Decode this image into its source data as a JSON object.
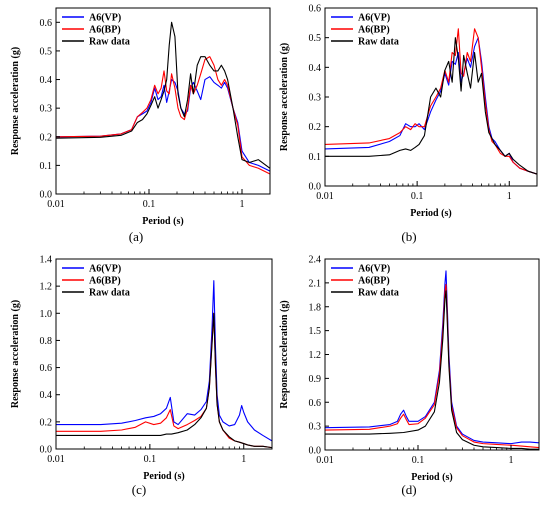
{
  "chart_data": [
    {
      "type": "line",
      "caption": "(a)",
      "xlabel": "Period (s)",
      "ylabel": "Response acceleration (g)",
      "xscale": "log",
      "xlim": [
        0.01,
        2
      ],
      "ylim": [
        0,
        0.65
      ],
      "xticks": [
        0.01,
        0.1,
        1
      ],
      "xtick_labels": [
        "0.01",
        "0.1",
        "1"
      ],
      "yticks": [
        0,
        0.1,
        0.2,
        0.3,
        0.4,
        0.5,
        0.6
      ],
      "ytick_labels": [
        "0.0",
        "0.1",
        "0.2",
        "0.3",
        "0.4",
        "0.5",
        "0.6"
      ],
      "legend_position": "top-left",
      "series": [
        {
          "name": "A6(VP)",
          "color": "#0000ff",
          "x": [
            0.01,
            0.03,
            0.05,
            0.065,
            0.075,
            0.085,
            0.095,
            0.105,
            0.115,
            0.125,
            0.135,
            0.145,
            0.155,
            0.165,
            0.175,
            0.19,
            0.205,
            0.22,
            0.24,
            0.26,
            0.28,
            0.3,
            0.33,
            0.36,
            0.4,
            0.45,
            0.5,
            0.55,
            0.6,
            0.65,
            0.7,
            0.8,
            0.9,
            1,
            1.2,
            1.5,
            2
          ],
          "y": [
            0.2,
            0.202,
            0.21,
            0.225,
            0.27,
            0.28,
            0.29,
            0.32,
            0.37,
            0.33,
            0.34,
            0.38,
            0.32,
            0.36,
            0.4,
            0.39,
            0.36,
            0.3,
            0.28,
            0.29,
            0.37,
            0.39,
            0.36,
            0.33,
            0.4,
            0.41,
            0.39,
            0.38,
            0.37,
            0.39,
            0.37,
            0.3,
            0.25,
            0.15,
            0.11,
            0.1,
            0.08
          ]
        },
        {
          "name": "A6(BP)",
          "color": "#ff0000",
          "x": [
            0.01,
            0.03,
            0.05,
            0.065,
            0.075,
            0.085,
            0.095,
            0.105,
            0.115,
            0.125,
            0.135,
            0.145,
            0.155,
            0.165,
            0.175,
            0.19,
            0.205,
            0.22,
            0.24,
            0.26,
            0.28,
            0.3,
            0.33,
            0.36,
            0.4,
            0.45,
            0.5,
            0.55,
            0.6,
            0.65,
            0.7,
            0.8,
            0.9,
            1,
            1.2,
            1.5,
            2
          ],
          "y": [
            0.2,
            0.202,
            0.21,
            0.225,
            0.27,
            0.285,
            0.3,
            0.33,
            0.38,
            0.35,
            0.37,
            0.43,
            0.36,
            0.35,
            0.42,
            0.37,
            0.3,
            0.27,
            0.26,
            0.3,
            0.38,
            0.35,
            0.38,
            0.42,
            0.47,
            0.48,
            0.45,
            0.4,
            0.38,
            0.4,
            0.38,
            0.3,
            0.24,
            0.13,
            0.1,
            0.09,
            0.07
          ]
        },
        {
          "name": "Raw data",
          "color": "#000000",
          "x": [
            0.01,
            0.03,
            0.05,
            0.065,
            0.075,
            0.085,
            0.095,
            0.105,
            0.115,
            0.125,
            0.135,
            0.145,
            0.155,
            0.165,
            0.175,
            0.19,
            0.205,
            0.22,
            0.24,
            0.26,
            0.28,
            0.3,
            0.33,
            0.36,
            0.4,
            0.45,
            0.5,
            0.55,
            0.6,
            0.65,
            0.7,
            0.8,
            0.9,
            1,
            1.2,
            1.5,
            2
          ],
          "y": [
            0.195,
            0.198,
            0.205,
            0.22,
            0.25,
            0.26,
            0.28,
            0.31,
            0.34,
            0.3,
            0.33,
            0.36,
            0.4,
            0.52,
            0.6,
            0.55,
            0.35,
            0.3,
            0.27,
            0.33,
            0.42,
            0.35,
            0.45,
            0.48,
            0.48,
            0.45,
            0.43,
            0.43,
            0.45,
            0.43,
            0.4,
            0.3,
            0.2,
            0.12,
            0.11,
            0.12,
            0.09
          ]
        }
      ]
    },
    {
      "type": "line",
      "caption": "(b)",
      "xlabel": "Period (s)",
      "ylabel": "Response acceleration (g)",
      "xscale": "log",
      "xlim": [
        0.01,
        2
      ],
      "ylim": [
        0,
        0.6
      ],
      "xticks": [
        0.01,
        0.1,
        1
      ],
      "xtick_labels": [
        "0.01",
        "0.1",
        "1"
      ],
      "yticks": [
        0,
        0.1,
        0.2,
        0.3,
        0.4,
        0.5,
        0.6
      ],
      "ytick_labels": [
        "0.0",
        "0.1",
        "0.2",
        "0.3",
        "0.4",
        "0.5",
        "0.6"
      ],
      "legend_position": "top-left",
      "series": [
        {
          "name": "A6(VP)",
          "color": "#0000ff",
          "x": [
            0.01,
            0.03,
            0.05,
            0.065,
            0.075,
            0.085,
            0.095,
            0.105,
            0.12,
            0.14,
            0.16,
            0.18,
            0.2,
            0.22,
            0.24,
            0.26,
            0.28,
            0.3,
            0.32,
            0.35,
            0.38,
            0.42,
            0.46,
            0.5,
            0.55,
            0.6,
            0.65,
            0.7,
            0.8,
            0.9,
            1,
            1.1,
            1.3,
            1.6,
            2
          ],
          "y": [
            0.125,
            0.13,
            0.15,
            0.17,
            0.21,
            0.2,
            0.2,
            0.21,
            0.19,
            0.25,
            0.29,
            0.32,
            0.38,
            0.34,
            0.42,
            0.41,
            0.45,
            0.35,
            0.38,
            0.43,
            0.4,
            0.47,
            0.5,
            0.42,
            0.3,
            0.2,
            0.16,
            0.15,
            0.12,
            0.1,
            0.11,
            0.08,
            0.06,
            0.05,
            0.04
          ]
        },
        {
          "name": "A6(BP)",
          "color": "#ff0000",
          "x": [
            0.01,
            0.03,
            0.05,
            0.065,
            0.075,
            0.085,
            0.095,
            0.105,
            0.12,
            0.14,
            0.16,
            0.18,
            0.2,
            0.22,
            0.24,
            0.26,
            0.28,
            0.3,
            0.32,
            0.35,
            0.38,
            0.42,
            0.46,
            0.5,
            0.55,
            0.6,
            0.65,
            0.7,
            0.8,
            0.9,
            1,
            1.1,
            1.3,
            1.6,
            2
          ],
          "y": [
            0.14,
            0.145,
            0.16,
            0.18,
            0.2,
            0.19,
            0.21,
            0.2,
            0.2,
            0.27,
            0.3,
            0.33,
            0.39,
            0.35,
            0.45,
            0.44,
            0.53,
            0.38,
            0.37,
            0.45,
            0.42,
            0.53,
            0.5,
            0.4,
            0.28,
            0.19,
            0.15,
            0.14,
            0.11,
            0.1,
            0.1,
            0.08,
            0.06,
            0.05,
            0.04
          ]
        },
        {
          "name": "Raw data",
          "color": "#000000",
          "x": [
            0.01,
            0.03,
            0.05,
            0.065,
            0.075,
            0.085,
            0.095,
            0.105,
            0.12,
            0.14,
            0.16,
            0.18,
            0.2,
            0.22,
            0.24,
            0.26,
            0.28,
            0.3,
            0.32,
            0.35,
            0.38,
            0.42,
            0.46,
            0.5,
            0.55,
            0.6,
            0.65,
            0.7,
            0.8,
            0.9,
            1,
            1.1,
            1.3,
            1.6,
            2
          ],
          "y": [
            0.1,
            0.1,
            0.105,
            0.12,
            0.125,
            0.12,
            0.13,
            0.14,
            0.17,
            0.3,
            0.33,
            0.3,
            0.39,
            0.42,
            0.35,
            0.5,
            0.43,
            0.32,
            0.44,
            0.38,
            0.33,
            0.45,
            0.35,
            0.38,
            0.25,
            0.18,
            0.16,
            0.14,
            0.12,
            0.1,
            0.11,
            0.09,
            0.07,
            0.05,
            0.04
          ]
        }
      ]
    },
    {
      "type": "line",
      "caption": "(c)",
      "xlabel": "Period (s)",
      "ylabel": "Response acceleration (g)",
      "xscale": "log",
      "xlim": [
        0.01,
        2
      ],
      "ylim": [
        0,
        1.4
      ],
      "xticks": [
        0.01,
        0.1,
        1
      ],
      "xtick_labels": [
        "0.01",
        "0.1",
        "1"
      ],
      "yticks": [
        0,
        0.2,
        0.4,
        0.6,
        0.8,
        1.0,
        1.2,
        1.4
      ],
      "ytick_labels": [
        "0.0",
        "0.2",
        "0.4",
        "0.6",
        "0.8",
        "1.0",
        "1.2",
        "1.4"
      ],
      "legend_position": "top-left",
      "series": [
        {
          "name": "A6(VP)",
          "color": "#0000ff",
          "x": [
            0.01,
            0.03,
            0.05,
            0.07,
            0.09,
            0.11,
            0.13,
            0.15,
            0.165,
            0.18,
            0.2,
            0.25,
            0.3,
            0.35,
            0.4,
            0.43,
            0.46,
            0.48,
            0.5,
            0.52,
            0.55,
            0.6,
            0.7,
            0.8,
            0.9,
            0.95,
            1,
            1.1,
            1.3,
            1.6,
            2
          ],
          "y": [
            0.18,
            0.18,
            0.19,
            0.21,
            0.23,
            0.24,
            0.26,
            0.3,
            0.38,
            0.2,
            0.18,
            0.26,
            0.25,
            0.29,
            0.35,
            0.5,
            0.9,
            1.24,
            0.75,
            0.4,
            0.25,
            0.2,
            0.17,
            0.18,
            0.25,
            0.32,
            0.27,
            0.2,
            0.14,
            0.1,
            0.06
          ]
        },
        {
          "name": "A6(BP)",
          "color": "#ff0000",
          "x": [
            0.01,
            0.03,
            0.05,
            0.07,
            0.09,
            0.11,
            0.13,
            0.15,
            0.165,
            0.18,
            0.2,
            0.25,
            0.3,
            0.35,
            0.4,
            0.43,
            0.46,
            0.48,
            0.5,
            0.52,
            0.55,
            0.6,
            0.7,
            0.8,
            0.9,
            1,
            1.1,
            1.3,
            1.6,
            2
          ],
          "y": [
            0.13,
            0.13,
            0.14,
            0.16,
            0.2,
            0.18,
            0.19,
            0.23,
            0.29,
            0.17,
            0.15,
            0.18,
            0.21,
            0.24,
            0.3,
            0.45,
            0.8,
            1.0,
            0.6,
            0.33,
            0.2,
            0.14,
            0.08,
            0.06,
            0.05,
            0.04,
            0.03,
            0.02,
            0.02,
            0.01
          ]
        },
        {
          "name": "Raw data",
          "color": "#000000",
          "x": [
            0.01,
            0.03,
            0.05,
            0.07,
            0.09,
            0.11,
            0.13,
            0.15,
            0.17,
            0.2,
            0.25,
            0.3,
            0.35,
            0.4,
            0.43,
            0.46,
            0.48,
            0.5,
            0.52,
            0.55,
            0.6,
            0.7,
            0.8,
            0.9,
            1,
            1.1,
            1.3,
            1.6,
            2
          ],
          "y": [
            0.1,
            0.1,
            0.1,
            0.1,
            0.1,
            0.1,
            0.1,
            0.11,
            0.11,
            0.12,
            0.14,
            0.18,
            0.23,
            0.3,
            0.45,
            0.78,
            1.0,
            0.62,
            0.33,
            0.2,
            0.14,
            0.09,
            0.06,
            0.05,
            0.04,
            0.03,
            0.02,
            0.02,
            0.01
          ]
        }
      ]
    },
    {
      "type": "line",
      "caption": "(d)",
      "xlabel": "Period (s)",
      "ylabel": "Response acceleration (g)",
      "xscale": "log",
      "xlim": [
        0.01,
        2
      ],
      "ylim": [
        0,
        2.4
      ],
      "xticks": [
        0.01,
        0.1,
        1
      ],
      "xtick_labels": [
        "0.01",
        "0.1",
        "1"
      ],
      "yticks": [
        0,
        0.3,
        0.6,
        0.9,
        1.2,
        1.5,
        1.8,
        2.1,
        2.4
      ],
      "ytick_labels": [
        "0.0",
        "0.3",
        "0.6",
        "0.9",
        "1.2",
        "1.5",
        "1.8",
        "2.1",
        "2.4"
      ],
      "legend_position": "top-left",
      "series": [
        {
          "name": "A6(VP)",
          "color": "#0000ff",
          "x": [
            0.01,
            0.03,
            0.05,
            0.06,
            0.065,
            0.07,
            0.075,
            0.08,
            0.1,
            0.12,
            0.15,
            0.17,
            0.185,
            0.195,
            0.2,
            0.205,
            0.215,
            0.23,
            0.26,
            0.3,
            0.4,
            0.5,
            0.7,
            1,
            1.3,
            1.6,
            2
          ],
          "y": [
            0.28,
            0.29,
            0.32,
            0.36,
            0.45,
            0.5,
            0.42,
            0.36,
            0.36,
            0.42,
            0.6,
            1.0,
            1.6,
            2.1,
            2.25,
            1.9,
            1.2,
            0.6,
            0.3,
            0.2,
            0.12,
            0.1,
            0.09,
            0.08,
            0.1,
            0.1,
            0.09
          ]
        },
        {
          "name": "A6(BP)",
          "color": "#ff0000",
          "x": [
            0.01,
            0.03,
            0.05,
            0.06,
            0.065,
            0.07,
            0.075,
            0.08,
            0.1,
            0.12,
            0.15,
            0.17,
            0.185,
            0.195,
            0.2,
            0.205,
            0.215,
            0.23,
            0.26,
            0.3,
            0.4,
            0.5,
            0.7,
            1,
            1.3,
            1.6,
            2
          ],
          "y": [
            0.25,
            0.26,
            0.3,
            0.33,
            0.4,
            0.45,
            0.38,
            0.32,
            0.33,
            0.4,
            0.57,
            0.95,
            1.5,
            2.0,
            2.08,
            1.8,
            1.1,
            0.55,
            0.28,
            0.18,
            0.1,
            0.08,
            0.07,
            0.06,
            0.05,
            0.04,
            0.03
          ]
        },
        {
          "name": "Raw data",
          "color": "#000000",
          "x": [
            0.01,
            0.03,
            0.05,
            0.07,
            0.1,
            0.12,
            0.15,
            0.17,
            0.185,
            0.195,
            0.2,
            0.205,
            0.215,
            0.23,
            0.26,
            0.3,
            0.4,
            0.5,
            0.7,
            1,
            1.3,
            1.6,
            2
          ],
          "y": [
            0.2,
            0.2,
            0.21,
            0.22,
            0.25,
            0.3,
            0.48,
            0.85,
            1.4,
            1.9,
            2.0,
            1.7,
            1.05,
            0.5,
            0.22,
            0.13,
            0.06,
            0.04,
            0.03,
            0.02,
            0.02,
            0.01,
            0.01
          ]
        }
      ]
    }
  ]
}
